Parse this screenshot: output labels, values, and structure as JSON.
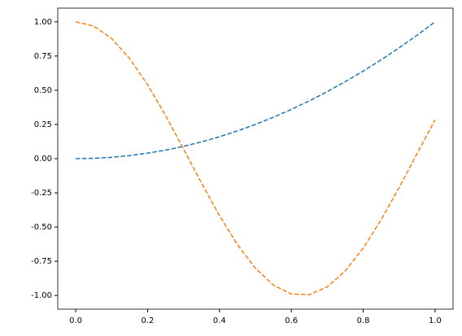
{
  "chart_data": {
    "type": "line",
    "x": [
      0,
      0.05,
      0.1,
      0.15,
      0.2,
      0.25,
      0.3,
      0.35,
      0.4,
      0.45,
      0.5,
      0.55,
      0.6,
      0.65,
      0.7,
      0.75,
      0.8,
      0.85,
      0.9,
      0.95,
      1
    ],
    "series": [
      {
        "color": "#1f77b4",
        "values": [
          0,
          0.0025,
          0.01,
          0.0225,
          0.04,
          0.0625,
          0.09,
          0.1225,
          0.16,
          0.2025,
          0.25,
          0.3025,
          0.36,
          0.4225,
          0.49,
          0.5625,
          0.64,
          0.7225,
          0.81,
          0.9025,
          1
        ]
      },
      {
        "color": "#ff7f0e",
        "values": [
          1,
          0.9689,
          0.8776,
          0.7317,
          0.5403,
          0.3153,
          0.0707,
          -0.1782,
          -0.4161,
          -0.6282,
          -0.8011,
          -0.9243,
          -0.99,
          -0.9941,
          -0.9365,
          -0.8206,
          -0.6536,
          -0.4461,
          -0.2108,
          0.0376,
          0.2837
        ]
      }
    ],
    "line_style": "dashed",
    "xlim": [
      -0.05,
      1.05
    ],
    "ylim": [
      -1.1,
      1.1
    ],
    "xticks": [
      {
        "value": 0,
        "label": "0.0"
      },
      0.2,
      0.4,
      0.6,
      0.8,
      {
        "value": 1,
        "label": "1.0"
      }
    ],
    "yticks": [
      {
        "value": -1,
        "label": "-1.00"
      },
      -0.75,
      {
        "value": -0.5,
        "label": "-0.50"
      },
      -0.25,
      {
        "value": 0,
        "label": "0.00"
      },
      0.25,
      {
        "value": 0.5,
        "label": "0.50"
      },
      0.75,
      {
        "value": 1,
        "label": "1.00"
      }
    ],
    "grid": false
  }
}
